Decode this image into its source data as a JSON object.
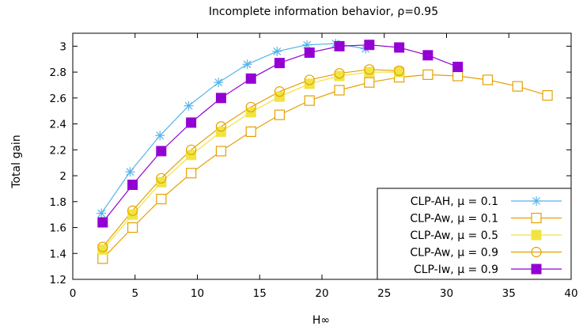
{
  "chart_data": {
    "type": "line",
    "title": "Incomplete information behavior, ρ=0.95",
    "xlabel": "H∞",
    "ylabel": "Total gain",
    "xlim": [
      0,
      40
    ],
    "ylim": [
      1.2,
      3.1
    ],
    "xticks": [
      0,
      5,
      10,
      15,
      20,
      25,
      30,
      35,
      40
    ],
    "yticks": [
      1.2,
      1.4,
      1.6,
      1.8,
      2,
      2.2,
      2.4,
      2.6,
      2.8,
      3
    ],
    "xtick_labels": [
      "0",
      "5",
      "10",
      "15",
      "20",
      "25",
      "30",
      "35",
      "40"
    ],
    "ytick_labels": [
      "1.2",
      "1.4",
      "1.6",
      "1.8",
      "2",
      "2.2",
      "2.4",
      "2.6",
      "2.8",
      "3"
    ],
    "grid": false,
    "legend_position": "bottom-right",
    "series": [
      {
        "name": "CLP-AH, μ = 0.1",
        "color": "#56b4e9",
        "marker": "asterisk",
        "x": [
          2.3,
          4.6,
          7.0,
          9.3,
          11.7,
          14.0,
          16.4,
          18.8,
          21.1,
          23.5
        ],
        "y": [
          1.71,
          2.03,
          2.31,
          2.54,
          2.72,
          2.86,
          2.96,
          3.01,
          3.02,
          2.98
        ]
      },
      {
        "name": "CLP-Aw, μ = 0.1",
        "color": "#e6a000",
        "marker": "open-square",
        "x": [
          2.4,
          4.8,
          7.1,
          9.5,
          11.9,
          14.3,
          16.6,
          19.0,
          21.4,
          23.8,
          26.2,
          28.5,
          30.9,
          33.3,
          35.7,
          38.1
        ],
        "y": [
          1.36,
          1.6,
          1.82,
          2.02,
          2.19,
          2.34,
          2.47,
          2.58,
          2.66,
          2.72,
          2.76,
          2.78,
          2.77,
          2.74,
          2.69,
          2.62
        ]
      },
      {
        "name": "CLP-Aw, μ = 0.5",
        "color": "#f0e442",
        "marker": "filled-square",
        "x": [
          2.4,
          4.8,
          7.1,
          9.5,
          11.9,
          14.3,
          16.6,
          19.0,
          21.4,
          23.8,
          26.2
        ],
        "y": [
          1.43,
          1.7,
          1.95,
          2.16,
          2.34,
          2.49,
          2.61,
          2.71,
          2.77,
          2.8,
          2.8
        ]
      },
      {
        "name": "CLP-Aw, μ = 0.9",
        "color": "#e6a000",
        "marker": "open-circle",
        "x": [
          2.4,
          4.8,
          7.1,
          9.5,
          11.9,
          14.3,
          16.6,
          19.0,
          21.4,
          23.8,
          26.2
        ],
        "y": [
          1.45,
          1.73,
          1.98,
          2.2,
          2.38,
          2.53,
          2.65,
          2.74,
          2.79,
          2.82,
          2.81
        ]
      },
      {
        "name": "CLP-Iw, μ = 0.9",
        "color": "#9400d3",
        "marker": "filled-square",
        "x": [
          2.4,
          4.8,
          7.1,
          9.5,
          11.9,
          14.3,
          16.6,
          19.0,
          21.4,
          23.8,
          26.2,
          28.5,
          30.9
        ],
        "y": [
          1.64,
          1.93,
          2.19,
          2.41,
          2.6,
          2.75,
          2.87,
          2.95,
          3.0,
          3.01,
          2.99,
          2.93,
          2.84
        ]
      }
    ]
  }
}
